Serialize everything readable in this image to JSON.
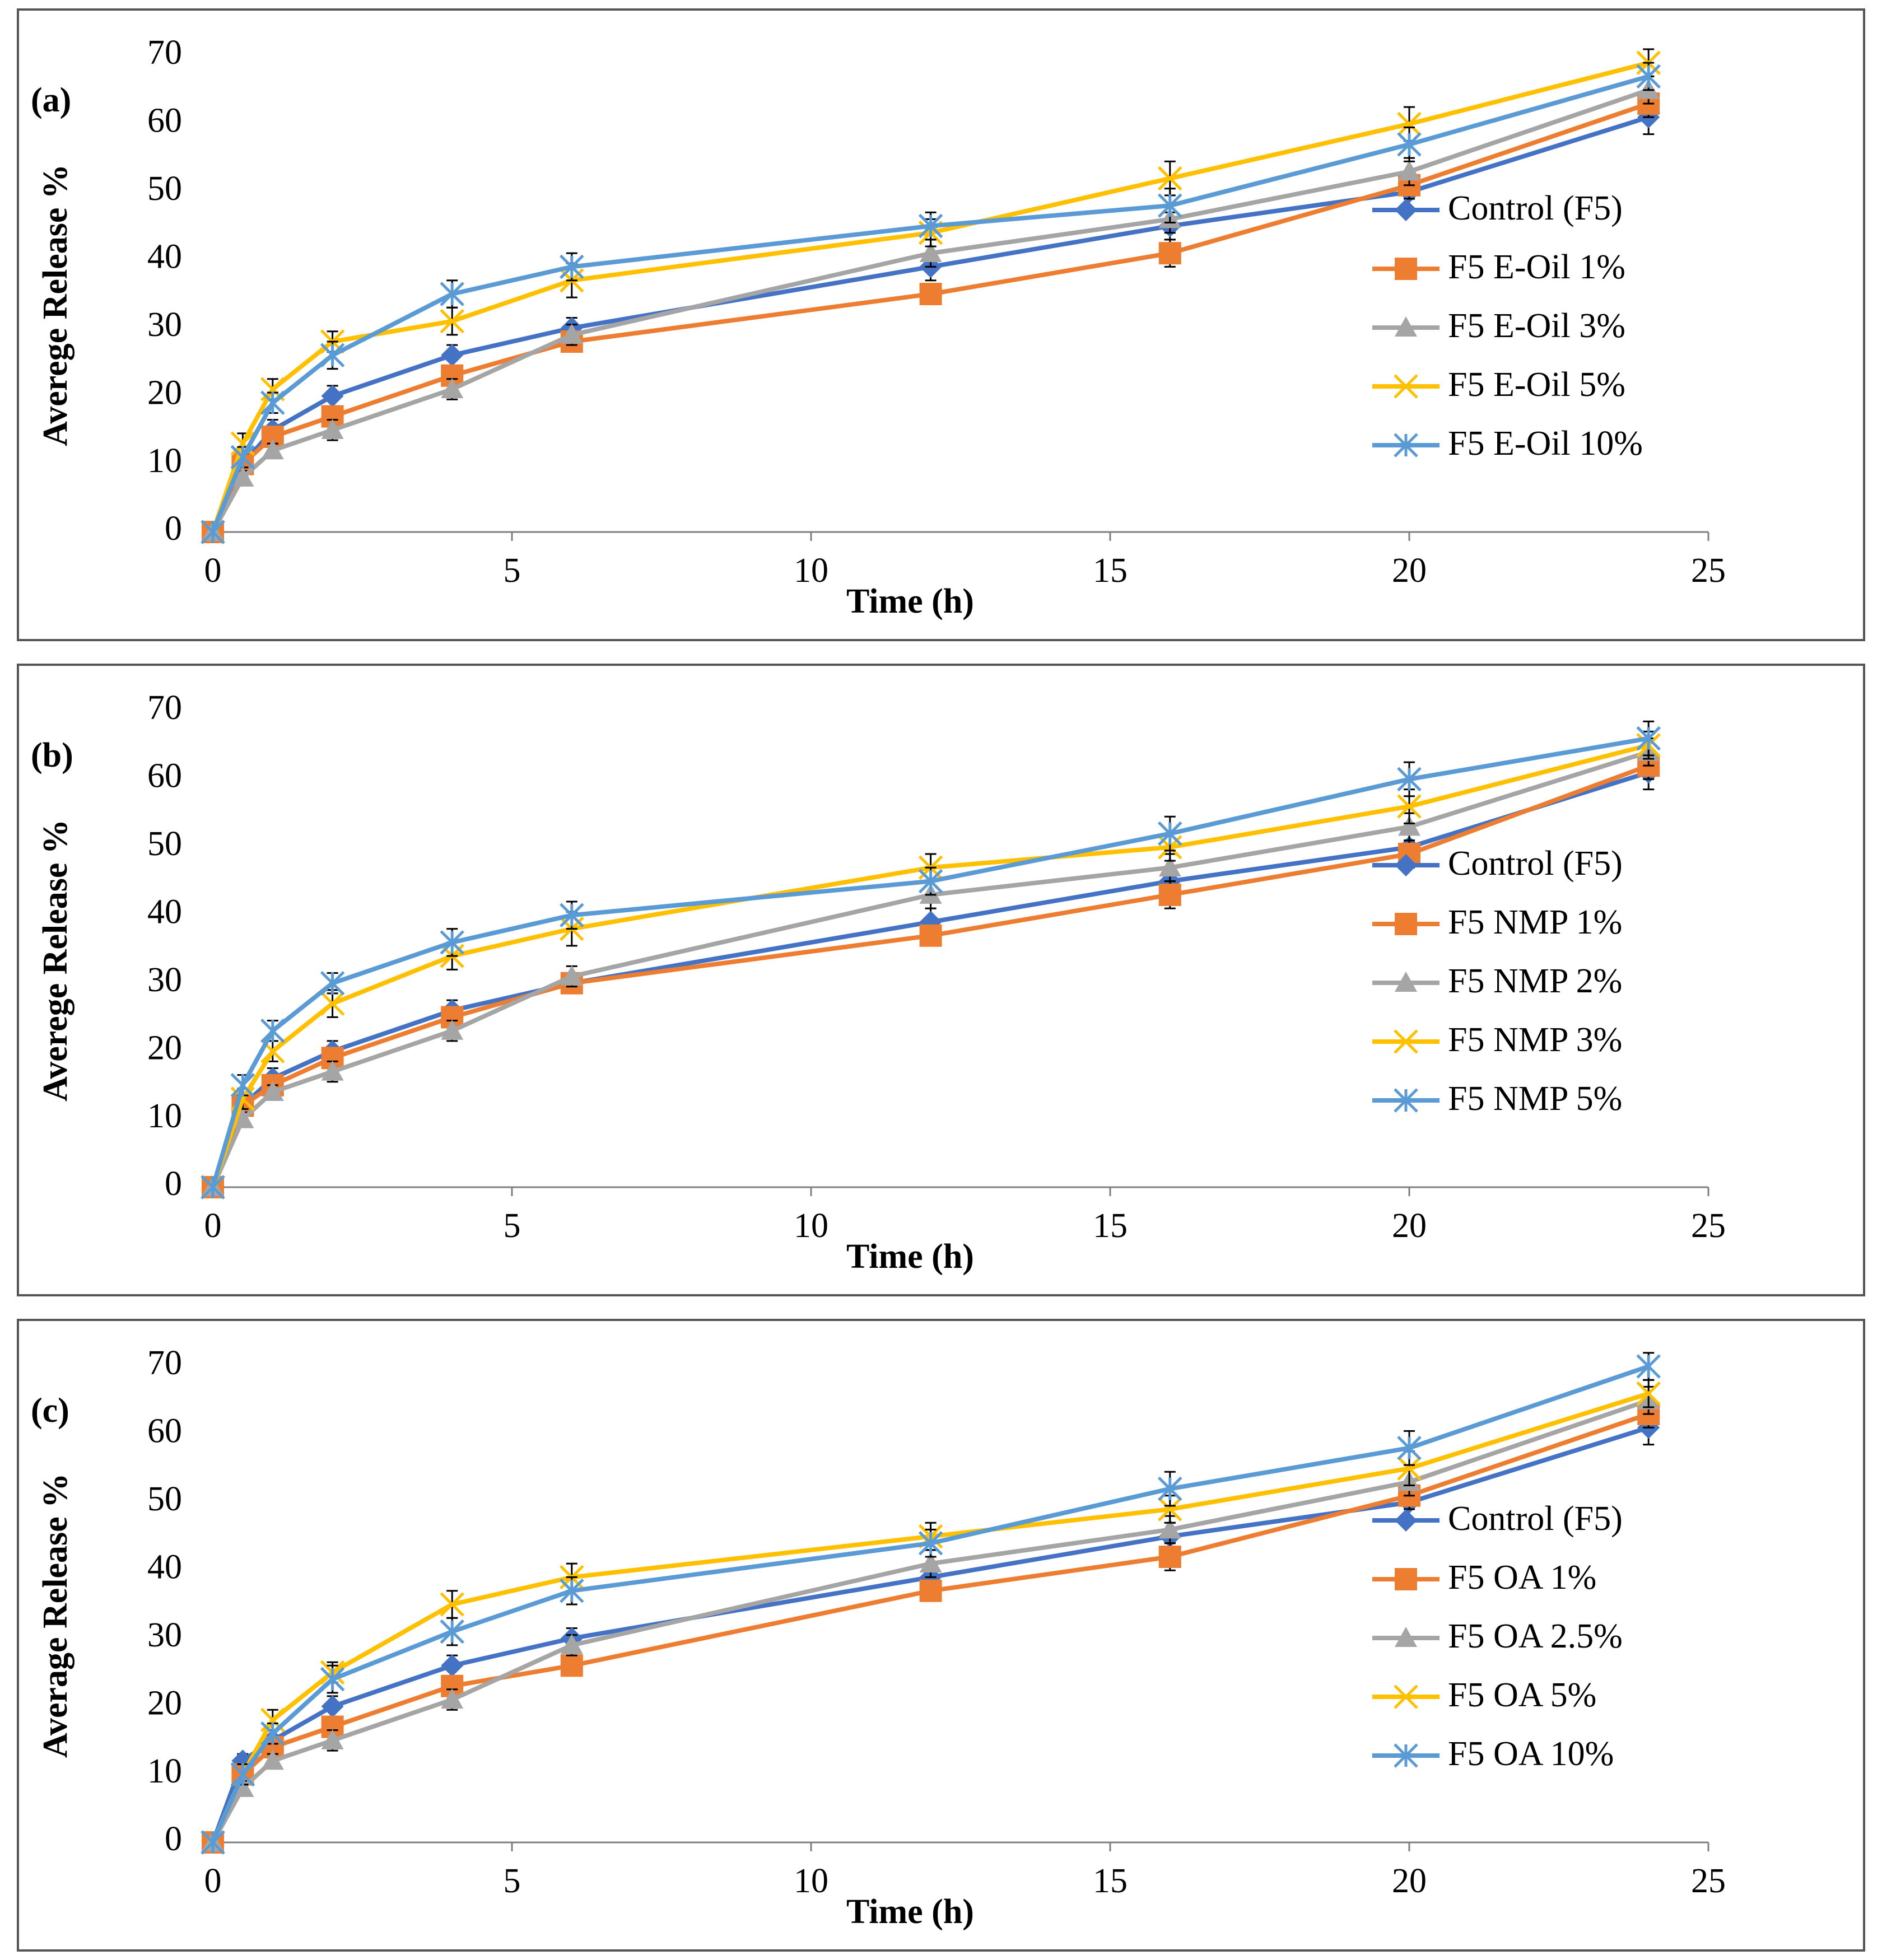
{
  "chart_data": [
    {
      "type": "line",
      "panel_label": "(a)",
      "x_label": "Time (h)",
      "y_label": "Averege Release %",
      "x": [
        0,
        0.5,
        1,
        2,
        4,
        6,
        12,
        16,
        20,
        24
      ],
      "xlim": [
        0,
        25
      ],
      "xticks": [
        0,
        5,
        10,
        15,
        20,
        25
      ],
      "ylim": [
        0,
        70
      ],
      "yticks": [
        0,
        10,
        20,
        30,
        40,
        50,
        60,
        70
      ],
      "grid": false,
      "legend": "right",
      "series": [
        {
          "name": "Control (F5)",
          "color": "#4472c4",
          "marker": "diamond",
          "values": [
            0,
            10,
            15,
            20,
            26,
            30,
            39,
            45,
            50,
            61
          ],
          "errors": [
            0,
            1,
            1.5,
            1.5,
            1.5,
            1.5,
            2,
            2,
            2.5,
            2.5
          ]
        },
        {
          "name": "F5 E-Oil 1%",
          "color": "#ed7d31",
          "marker": "square",
          "values": [
            0,
            10,
            14,
            17,
            23,
            28,
            35,
            41,
            51,
            63
          ],
          "errors": [
            0,
            1,
            1.5,
            1.5,
            1.5,
            1.5,
            1.5,
            2,
            2,
            2
          ]
        },
        {
          "name": "F5 E-Oil 3%",
          "color": "#a5a5a5",
          "marker": "triangle",
          "values": [
            0,
            8,
            12,
            15,
            21,
            29,
            41,
            46,
            53,
            65
          ],
          "errors": [
            0,
            1,
            1,
            1.5,
            1.5,
            1.5,
            2,
            2,
            2,
            2
          ]
        },
        {
          "name": "F5 E-Oil 5%",
          "color": "#ffc000",
          "marker": "x",
          "values": [
            0,
            13,
            21,
            28,
            31,
            37,
            44,
            52,
            60,
            69
          ],
          "errors": [
            0,
            1.5,
            1.5,
            1.5,
            2,
            2.5,
            2,
            2.5,
            2.5,
            2
          ]
        },
        {
          "name": "F5 E-Oil 10%",
          "color": "#5b9bd5",
          "marker": "star",
          "values": [
            0,
            11,
            19,
            26,
            35,
            39,
            45,
            48,
            57,
            67
          ],
          "errors": [
            0,
            1.5,
            1.5,
            2,
            2,
            2,
            2,
            2.5,
            2.5,
            2
          ]
        }
      ]
    },
    {
      "type": "line",
      "panel_label": "(b)",
      "x_label": "Time (h)",
      "y_label": "Averege Release %",
      "x": [
        0,
        0.5,
        1,
        2,
        4,
        6,
        12,
        16,
        20,
        24
      ],
      "xlim": [
        0,
        25
      ],
      "xticks": [
        0,
        5,
        10,
        15,
        20,
        25
      ],
      "ylim": [
        0,
        70
      ],
      "yticks": [
        0,
        10,
        20,
        30,
        40,
        50,
        60,
        70
      ],
      "grid": false,
      "legend": "right",
      "series": [
        {
          "name": "Control (F5)",
          "color": "#4472c4",
          "marker": "diamond",
          "values": [
            0,
            12,
            16,
            20,
            26,
            30,
            39,
            45,
            50,
            61
          ],
          "errors": [
            0,
            1,
            1.5,
            1.5,
            1.5,
            1.5,
            2,
            2,
            2,
            2.5
          ]
        },
        {
          "name": "F5 NMP 1%",
          "color": "#ed7d31",
          "marker": "square",
          "values": [
            0,
            12,
            15,
            19,
            25,
            30,
            37,
            43,
            49,
            62
          ],
          "errors": [
            0,
            1,
            1.5,
            1.5,
            1.5,
            1.5,
            1.5,
            2,
            2,
            2
          ]
        },
        {
          "name": "F5 NMP 2%",
          "color": "#a5a5a5",
          "marker": "triangle",
          "values": [
            0,
            10,
            14,
            17,
            23,
            31,
            43,
            47,
            53,
            64
          ],
          "errors": [
            0,
            1,
            1,
            1.5,
            1.5,
            1.5,
            2,
            2,
            2,
            2
          ]
        },
        {
          "name": "F5 NMP 3%",
          "color": "#ffc000",
          "marker": "x",
          "values": [
            0,
            13,
            20,
            27,
            34,
            38,
            47,
            50,
            56,
            65
          ],
          "errors": [
            0,
            1.5,
            1.5,
            2,
            2,
            2.5,
            2,
            2,
            2.5,
            2
          ]
        },
        {
          "name": "F5 NMP 5%",
          "color": "#5b9bd5",
          "marker": "star",
          "values": [
            0,
            15,
            23,
            30,
            36,
            40,
            45,
            52,
            60,
            66
          ],
          "errors": [
            0,
            1.5,
            1.5,
            1.5,
            2,
            2,
            2,
            2.5,
            2.5,
            2.5
          ]
        }
      ]
    },
    {
      "type": "line",
      "panel_label": "(c)",
      "x_label": "Time (h)",
      "y_label": "Average Release %",
      "x": [
        0,
        0.5,
        1,
        2,
        4,
        6,
        12,
        16,
        20,
        24
      ],
      "xlim": [
        0,
        25
      ],
      "xticks": [
        0,
        5,
        10,
        15,
        20,
        25
      ],
      "ylim": [
        0,
        70
      ],
      "yticks": [
        0,
        10,
        20,
        30,
        40,
        50,
        60,
        70
      ],
      "grid": false,
      "legend": "right",
      "series": [
        {
          "name": "Control (F5)",
          "color": "#4472c4",
          "marker": "diamond",
          "values": [
            0,
            12,
            15,
            20,
            26,
            30,
            39,
            45,
            50,
            61
          ],
          "errors": [
            0,
            1,
            1.5,
            1.5,
            1.5,
            1.5,
            2,
            2,
            2.5,
            2.5
          ]
        },
        {
          "name": "F5 OA 1%",
          "color": "#ed7d31",
          "marker": "square",
          "values": [
            0,
            10,
            14,
            17,
            23,
            26,
            37,
            42,
            51,
            63
          ],
          "errors": [
            0,
            1,
            1.5,
            1.5,
            1.5,
            1.5,
            1.5,
            2,
            2,
            2
          ]
        },
        {
          "name": "F5 OA 2.5%",
          "color": "#a5a5a5",
          "marker": "triangle",
          "values": [
            0,
            8,
            12,
            15,
            21,
            29,
            41,
            46,
            53,
            65
          ],
          "errors": [
            0,
            1,
            1,
            1.5,
            1.5,
            1.5,
            2,
            2,
            2,
            2
          ]
        },
        {
          "name": "F5 OA 5%",
          "color": "#ffc000",
          "marker": "x",
          "values": [
            0,
            10,
            18,
            25,
            35,
            39,
            45,
            49,
            55,
            66
          ],
          "errors": [
            0,
            1.5,
            1.5,
            1.5,
            2,
            2,
            2,
            2,
            2.5,
            2
          ]
        },
        {
          "name": "F5 OA 10%",
          "color": "#5b9bd5",
          "marker": "star",
          "values": [
            0,
            10,
            16,
            24,
            31,
            37,
            44,
            52,
            58,
            70
          ],
          "errors": [
            0,
            1.5,
            1.5,
            2,
            2,
            2,
            2,
            2.5,
            2.5,
            2
          ]
        }
      ]
    }
  ]
}
